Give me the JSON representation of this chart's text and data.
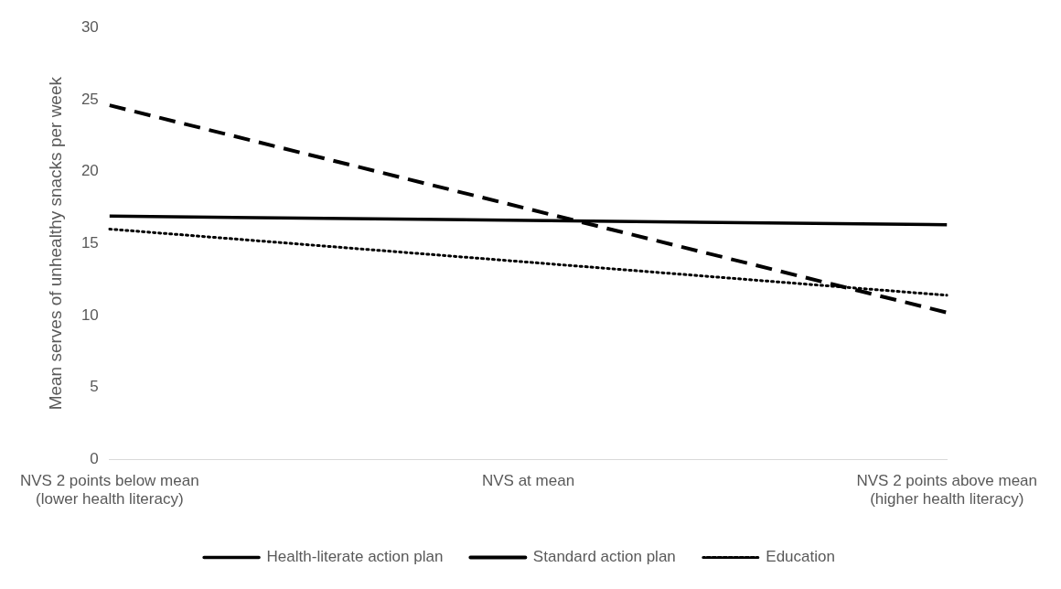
{
  "chart_data": {
    "type": "line",
    "ylabel": "Mean serves of unhealthy snacks per week",
    "categories": [
      "NVS 2 points below mean\n(lower health literacy)",
      "NVS at mean",
      "NVS 2 points above mean\n(higher health literacy)"
    ],
    "series": [
      {
        "name": "Health-literate action plan",
        "color": "#000000",
        "line_style": "solid",
        "values": [
          16.9,
          16.6,
          16.3
        ]
      },
      {
        "name": "Standard action plan",
        "color": "#000000",
        "line_style": "dashed",
        "values": [
          24.6,
          17.4,
          10.2
        ]
      },
      {
        "name": "Education",
        "color": "#000000",
        "line_style": "dotted",
        "values": [
          16.0,
          13.7,
          11.4
        ]
      }
    ],
    "ylim": [
      0,
      30
    ],
    "yticks": [
      0,
      5,
      10,
      15,
      20,
      25,
      30
    ],
    "grid": false,
    "legend": "bottom",
    "marker": "none"
  }
}
